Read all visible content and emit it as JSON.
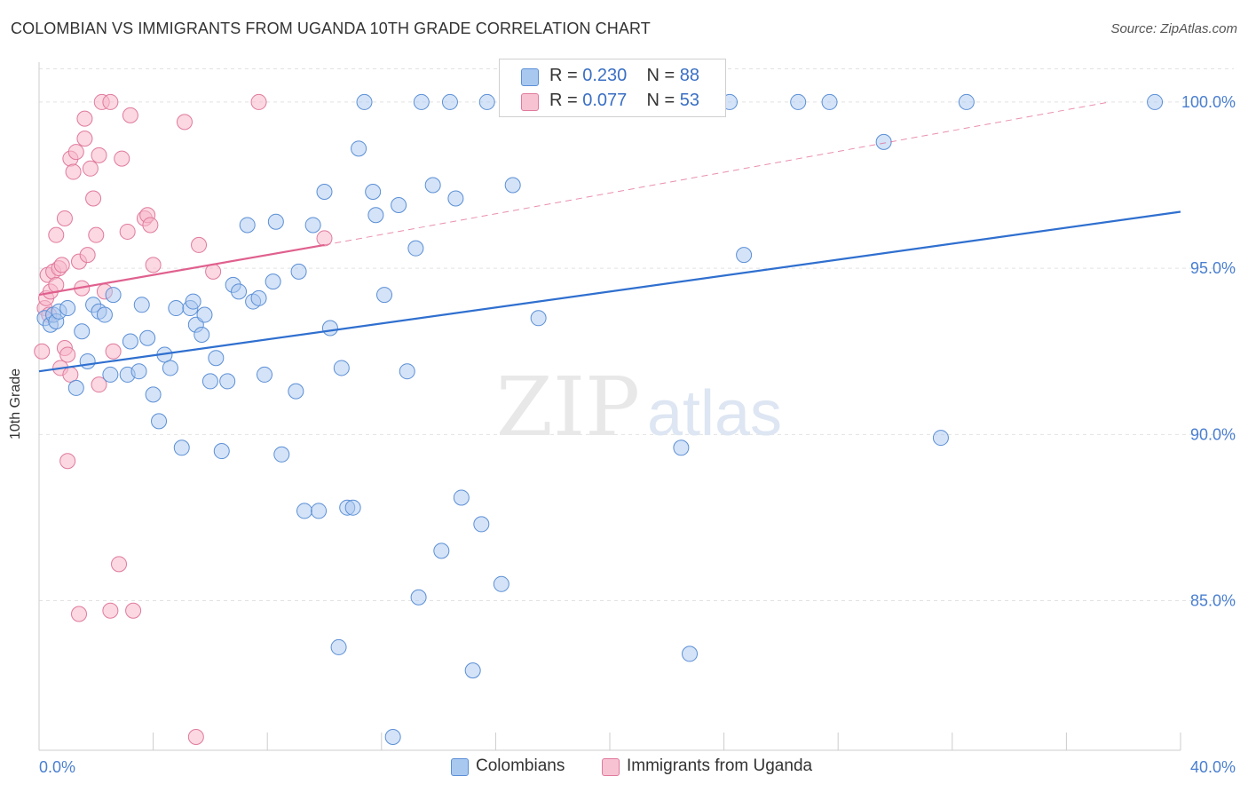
{
  "title": "COLOMBIAN VS IMMIGRANTS FROM UGANDA 10TH GRADE CORRELATION CHART",
  "source": "Source: ZipAtlas.com",
  "watermark_zip": "ZIP",
  "watermark_atlas": "atlas",
  "legend": {
    "series1": {
      "r_label": "R = ",
      "r_value": "0.230",
      "n_label": "N = ",
      "n_value": "88"
    },
    "series2": {
      "r_label": "R = ",
      "r_value": "0.077",
      "n_label": "N = ",
      "n_value": "53"
    }
  },
  "colors": {
    "blue_fill": "#a9c8f0",
    "blue_stroke": "#5b8fd6",
    "blue_line": "#2f6fcf",
    "pink_fill": "#f7b8cb",
    "pink_stroke": "#e07a9c",
    "pink_line": "#e0608e",
    "grid": "#e2e2e2",
    "tick_label": "#4a7fd0"
  },
  "chart_data": {
    "type": "scatter",
    "title": "COLOMBIAN VS IMMIGRANTS FROM UGANDA 10TH GRADE CORRELATION CHART",
    "xlabel": "",
    "ylabel": "10th Grade",
    "xlim": [
      0,
      40
    ],
    "ylim": [
      80.5,
      101.2
    ],
    "x_tick_labels": [
      "0.0%",
      "40.0%"
    ],
    "y_ticks": [
      85,
      90,
      95,
      100
    ],
    "y_tick_labels": [
      "85.0%",
      "90.0%",
      "95.0%",
      "100.0%"
    ],
    "grid": true,
    "legend_position": "top-center",
    "series": [
      {
        "name": "Colombians",
        "color": "#5b8fd6",
        "trend": {
          "x": [
            0,
            40
          ],
          "y": [
            91.9,
            96.7
          ]
        },
        "points": [
          [
            0.2,
            93.5
          ],
          [
            0.4,
            93.3
          ],
          [
            0.5,
            93.6
          ],
          [
            0.6,
            93.4
          ],
          [
            0.7,
            93.7
          ],
          [
            1.0,
            93.8
          ],
          [
            1.5,
            93.1
          ],
          [
            1.3,
            91.4
          ],
          [
            1.7,
            92.2
          ],
          [
            1.9,
            93.9
          ],
          [
            2.1,
            93.7
          ],
          [
            2.3,
            93.6
          ],
          [
            2.6,
            94.2
          ],
          [
            2.5,
            91.8
          ],
          [
            3.1,
            91.8
          ],
          [
            3.2,
            92.8
          ],
          [
            3.5,
            91.9
          ],
          [
            3.6,
            93.9
          ],
          [
            3.8,
            92.9
          ],
          [
            4.0,
            91.2
          ],
          [
            4.2,
            90.4
          ],
          [
            4.4,
            92.4
          ],
          [
            4.6,
            92.0
          ],
          [
            4.8,
            93.8
          ],
          [
            5.0,
            89.6
          ],
          [
            5.3,
            93.8
          ],
          [
            5.4,
            94.0
          ],
          [
            5.5,
            93.3
          ],
          [
            5.7,
            93.0
          ],
          [
            5.8,
            93.6
          ],
          [
            6.0,
            91.6
          ],
          [
            6.2,
            92.3
          ],
          [
            6.4,
            89.5
          ],
          [
            6.6,
            91.6
          ],
          [
            6.8,
            94.5
          ],
          [
            7.0,
            94.3
          ],
          [
            7.3,
            96.3
          ],
          [
            7.5,
            94.0
          ],
          [
            7.7,
            94.1
          ],
          [
            7.9,
            91.8
          ],
          [
            8.2,
            94.6
          ],
          [
            8.3,
            96.4
          ],
          [
            8.5,
            89.4
          ],
          [
            9.0,
            91.3
          ],
          [
            9.1,
            94.9
          ],
          [
            9.3,
            87.7
          ],
          [
            9.6,
            96.3
          ],
          [
            9.8,
            87.7
          ],
          [
            10.0,
            97.3
          ],
          [
            10.2,
            93.2
          ],
          [
            10.5,
            83.6
          ],
          [
            10.6,
            92.0
          ],
          [
            10.8,
            87.8
          ],
          [
            11.0,
            87.8
          ],
          [
            11.2,
            98.6
          ],
          [
            11.4,
            100.0
          ],
          [
            11.7,
            97.3
          ],
          [
            11.8,
            96.6
          ],
          [
            12.1,
            94.2
          ],
          [
            12.4,
            80.9
          ],
          [
            12.6,
            96.9
          ],
          [
            12.9,
            91.9
          ],
          [
            13.2,
            95.6
          ],
          [
            13.3,
            85.1
          ],
          [
            13.4,
            100.0
          ],
          [
            13.8,
            97.5
          ],
          [
            14.1,
            86.5
          ],
          [
            14.4,
            100.0
          ],
          [
            14.6,
            97.1
          ],
          [
            14.8,
            88.1
          ],
          [
            15.2,
            82.9
          ],
          [
            15.5,
            87.3
          ],
          [
            15.7,
            100.0
          ],
          [
            16.2,
            85.5
          ],
          [
            16.6,
            97.5
          ],
          [
            17.5,
            93.5
          ],
          [
            20.2,
            100.0
          ],
          [
            22.5,
            89.6
          ],
          [
            22.8,
            83.4
          ],
          [
            24.2,
            100.0
          ],
          [
            24.7,
            95.4
          ],
          [
            26.6,
            100.0
          ],
          [
            27.7,
            100.0
          ],
          [
            29.6,
            98.8
          ],
          [
            31.6,
            89.9
          ],
          [
            32.5,
            100.0
          ],
          [
            39.1,
            100.0
          ]
        ]
      },
      {
        "name": "Immigrants from Uganda",
        "color": "#e07a9c",
        "trend": {
          "x": [
            0,
            10
          ],
          "y": [
            94.2,
            95.7
          ]
        },
        "trend_ext": {
          "x": [
            10,
            37.5
          ],
          "y": [
            95.7,
            100.0
          ]
        },
        "points": [
          [
            0.1,
            92.5
          ],
          [
            0.2,
            93.8
          ],
          [
            0.25,
            94.1
          ],
          [
            0.3,
            94.8
          ],
          [
            0.35,
            93.6
          ],
          [
            0.4,
            94.3
          ],
          [
            0.5,
            94.9
          ],
          [
            0.6,
            96.0
          ],
          [
            0.6,
            94.5
          ],
          [
            0.7,
            95.0
          ],
          [
            0.75,
            92.0
          ],
          [
            0.8,
            95.1
          ],
          [
            0.9,
            96.5
          ],
          [
            0.9,
            92.6
          ],
          [
            1.0,
            89.2
          ],
          [
            1.0,
            92.4
          ],
          [
            1.1,
            91.8
          ],
          [
            1.1,
            98.3
          ],
          [
            1.2,
            97.9
          ],
          [
            1.3,
            98.5
          ],
          [
            1.4,
            95.2
          ],
          [
            1.4,
            84.6
          ],
          [
            1.5,
            94.4
          ],
          [
            1.6,
            98.9
          ],
          [
            1.6,
            99.5
          ],
          [
            1.7,
            95.4
          ],
          [
            1.8,
            98.0
          ],
          [
            1.9,
            97.1
          ],
          [
            2.0,
            96.0
          ],
          [
            2.1,
            98.4
          ],
          [
            2.1,
            91.5
          ],
          [
            2.2,
            100.0
          ],
          [
            2.3,
            94.3
          ],
          [
            2.5,
            100.0
          ],
          [
            2.5,
            84.7
          ],
          [
            2.6,
            92.5
          ],
          [
            2.8,
            86.1
          ],
          [
            2.9,
            98.3
          ],
          [
            3.1,
            96.1
          ],
          [
            3.2,
            99.6
          ],
          [
            3.3,
            84.7
          ],
          [
            3.7,
            96.5
          ],
          [
            3.8,
            96.6
          ],
          [
            3.9,
            96.3
          ],
          [
            4.0,
            95.1
          ],
          [
            5.1,
            99.4
          ],
          [
            5.5,
            80.9
          ],
          [
            5.6,
            95.7
          ],
          [
            6.1,
            94.9
          ],
          [
            7.7,
            100.0
          ],
          [
            10.0,
            95.9
          ]
        ]
      }
    ]
  },
  "bottom_legend": {
    "series1": "Colombians",
    "series2": "Immigrants from Uganda"
  }
}
